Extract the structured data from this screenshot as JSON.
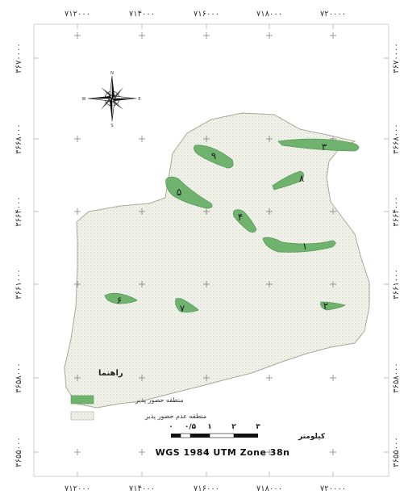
{
  "frame": {
    "top_x_ticks": [
      "۷۱۲۰۰۰",
      "۷۱۴۰۰۰",
      "۷۱۶۰۰۰",
      "۷۱۸۰۰۰",
      "۷۲۰۰۰۰"
    ],
    "bottom_x_ticks": [
      "۷۱۲۰۰۰",
      "۷۱۴۰۰۰",
      "۷۱۶۰۰۰",
      "۷۱۸۰۰۰",
      "۷۲۰۰۰۰"
    ],
    "left_y_ticks": [
      "۳۶۷۰۰۰۰",
      "۳۶۶۸۰۰۰",
      "۳۶۶۴۰۰۰",
      "۳۶۶۱۰۰۰",
      "۳۶۵۸۰۰۰",
      "۳۶۵۵۰۰۰"
    ],
    "right_y_ticks": [
      "۳۶۷۰۰۰۰",
      "۳۶۶۸۰۰۰",
      "۳۶۶۴۰۰۰",
      "۳۶۶۱۰۰۰",
      "۳۶۵۸۰۰۰",
      "۳۶۵۵۰۰۰"
    ]
  },
  "compass": {
    "n": "N",
    "s": "S",
    "e": "E",
    "w": "W"
  },
  "zones": [
    {
      "label": "۱"
    },
    {
      "label": "۲"
    },
    {
      "label": "۳"
    },
    {
      "label": "۴"
    },
    {
      "label": "۵"
    },
    {
      "label": "۶"
    },
    {
      "label": "۷"
    },
    {
      "label": "۸"
    },
    {
      "label": "۹"
    }
  ],
  "legend": {
    "title": "راهنما",
    "presence": "منطقه حضور پذیر",
    "absence": "منطقه عدم حضور پذیر"
  },
  "scale": {
    "unit": "کیلومتر",
    "labels": [
      "۰/۵",
      "۰",
      "۱",
      "۲",
      "۳"
    ]
  },
  "projection": "WGS 1984 UTM Zone 38n",
  "colors": {
    "presence": "#6fb36f",
    "absence_fill": "#f1f2ea",
    "border": "#9c9c8c",
    "ink": "#222222"
  }
}
